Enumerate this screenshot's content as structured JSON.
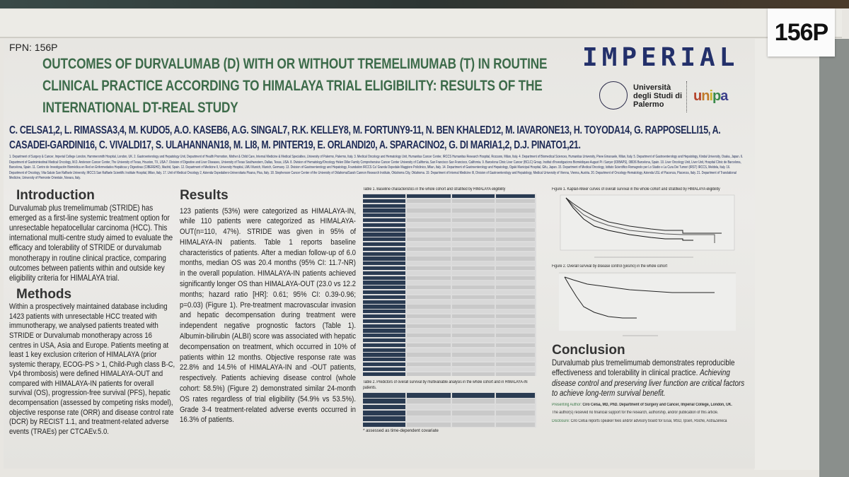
{
  "board_number": "156P",
  "fpn": "FPN: 156P",
  "title": "OUTCOMES OF DURVALUMAB (D) WITH OR WITHOUT TREMELIMUMAB (T) IN ROUTINE CLINICAL PRACTICE ACCORDING TO HIMALAYA TRIAL ELIGIBILITY: RESULTS OF THE INTERNATIONAL DT-REAL STUDY",
  "logos": {
    "imperial": "IMPERIAL",
    "palermo": "Università degli Studi di Palermo",
    "unipa": "unipa"
  },
  "authors": "C. CELSA1,2, L. RIMASSA3,4, M. KUDO5, A.O. KASEB6, A.G. SINGAL7, R.K. KELLEY8, M. FORTUNY9-11, N. BEN KHALED12, M. IAVARONE13, H. TOYODA14, G. RAPPOSELLI15, A. CASADEI-GARDINI16, C. VIVALDI17, S. ULAHANNAN18, M. LI8, M. PINTER19, E. ORLANDI20, A. SPARACINO2, G. DI MARIA1,2, D.J. PINATO1,21.",
  "affiliations": "1. Department of Surgery & Cancer, Imperial College London, Hammersmith Hospital, London, UK. 2. Gastroenterology and Hepatology Unit, Department of Health Promotion, Mother & Child Care, Internal Medicine & Medical Specialties, University of Palermo, Palermo, Italy. 3. Medical Oncology and Hematology Unit, Humanitas Cancer Center, IRCCS Humanitas Research Hospital, Rozzano, Milan, Italy. 4. Department of Biomedical Sciences, Humanitas University, Pieve Emanuele, Milan, Italy. 5. Department of Gastroenterology and Hepatology, Kindai University, Osaka, Japan. 6. Department of Gastrointestinal Medical Oncology, M.D. Anderson Cancer Center, The University of Texas, Houston, TX, USA 7. Division of Digestive and Liver Diseases, University of Texas Southwestern, Dallas, Texas, USA. 8. Division of Hematology/Oncology Helen Diller Family Comprehensive Cancer Center University of California, San Francisco San Francisco, California. 9. Barcelona Clinic Liver Cancer (BCLC) Group, Institut d'Investigacions Biomèdiques August Pi i Sunyer (IDIBAPS), 08036 Barcelona, Spain. 10. Liver Oncology Unit, Liver Unit, Hospital Clinic de Barcelona, Barcelona, Spain. 11. Centro de Investigación Biomédica en Red en Enfermedades Hepáticas y Digestivas (CIBEREHD), Madrid, Spain. 12. Department of Medicine II, University Hospital, LMU Munich, Munich, Germany. 13. Division of Gastroenterology and Hepatology, Foundation IRCCS Ca' Granda Ospedale Maggiore Policlinico, Milan, Italy. 14. Department of Gastroenterology and Hepatology, Ogaki Municipal Hospital, Gifu, Japan. 15. Department of Medical Oncology, Istituto Scientifico Romagnolo per Lo Studio e La Cura Dei Tumori (IRST) IRCCS, Meldola, Italy. 16. Department of Oncology, Vita-Salute San Raffaele University, IRCCS San Raffaele Scientific Institute Hospital, Milan, Italy. 17. Unit of Medical Oncology 2, Azienda Ospedaliero-Universitaria Pisana, Pisa, Italy. 18. Stephenson Cancer Center of the University of Oklahoma/Sarah Cannon Research Institute, Oklahoma City, Oklahoma. 19. Department of Internal Medicine III, Division of Gastroenterology and Hepatology, Medical University of Vienna, Vienna, Austria. 20. Department of Oncology-Hematology, Azienda USL of Piacenza, Piacenza, Italy. 21. Department of Translational Medicine, University of Piemonte Orientale, Novara, Italy.",
  "introduction": {
    "heading": "Introduction",
    "text": "Durvalumab plus tremelimumab (STRIDE) has emerged as a first-line systemic treatment option for unresectable hepatocellular carcinoma (HCC). This international multi-centre study aimed to evaluate the efficacy and tolerability of STRIDE or durvalumab monotherapy in routine clinical practice, comparing outcomes between patients within and outside key eligibility criteria for HIMALAYA trial."
  },
  "methods": {
    "heading": "Methods",
    "text": "Within a prospectively maintained database including 1423 patients with unresectable HCC treated with immunotherapy, we analysed patients treated with STRIDE or Durvalumab monotherapy across 16 centres in USA, Asia and Europe. Patients meeting at least 1 key exclusion criterion of HIMALAYA (prior systemic therapy, ECOG-PS > 1, Child-Pugh class B-C, Vp4 thrombosis) were defined HIMALAYA-OUT and compared with HIMALAYA-IN patients for overall survival (OS), progression-free survival (PFS), hepatic decompensation (assessed by competing risks model), objective response rate (ORR) and disease control rate (DCR) by RECIST 1.1, and treatment-related adverse events (TRAEs) per CTCAEv.5.0."
  },
  "results": {
    "heading": "Results",
    "text": "123 patients (53%) were categorized as HIMALAYA-IN, while 110 patients were categorized as HIMALAYA-OUT(n=110, 47%). STRIDE was given in 95% of HIMALAYA-IN patients. Table 1 reports baseline characteristics of patients. After a median follow-up of 6.0 months, median OS was 20.4 months (95% CI: 11.7-NR) in the overall population. HIMALAYA-IN patients achieved significantly longer OS than HIMALAYA-OUT (23.0 vs 12.2 months; hazard ratio [HR]: 0.61; 95% CI: 0.39-0.96; p=0.03) (Figure 1). Pre-treatment macrovascular invasion and hepatic decompensation during treatment were independent negative prognostic factors (Table 1). Albumin-bilirubin (ALBI) score was associated with hepatic decompensation on treatment, which occurred in 10% of patients within 12 months. Objective response rate was 22.8% and 14.5% of HIMALAYA-IN and -OUT patients, respectively. Patients achieving disease control (whole cohort: 58.5%) (Figure 2) demonstrated similar 24-month OS rates regardless of trial eligibility (54.9% vs 53.5%). Grade 3-4 treatment-related adverse events occurred in 16.3% of patients."
  },
  "table1": {
    "caption": "Table 1. Baseline characteristics in the whole cohort and stratified by HIMALAYA eligibility"
  },
  "table2": {
    "caption": "Table 2. Predictors of overall survival by multivariable analysis in the whole cohort and in HIMALAYA-IN patients.",
    "footnote": "* assessed as time-dependent covariate"
  },
  "figure1": {
    "caption": "Figure 1. Kaplan-Meier curves of overall survival in the whole cohort and stratified by HIMALAYA eligibility"
  },
  "figure2": {
    "caption": "Figure 2. Overall survival by disease control (yes/no) in the whole cohort"
  },
  "conclusion": {
    "heading": "Conclusion",
    "text_plain": "Durvalumab plus tremelimumab demonstrates reproducible effectiveness and tolerability in clinical practice. ",
    "text_italic": "Achieving disease control and preserving liver function are critical factors to achieve long-term survival benefit."
  },
  "presenting": {
    "label": "Presenting Author: ",
    "text": "Ciro Celsa, MD, PhD. Department of Surgery and Cancer, Imperial College, London, UK."
  },
  "funding": "The author(s) received no financial support for the research, authorship, and/or publication of this article.",
  "disclosure": {
    "label": "Disclosure: ",
    "text": "Ciro Celsa reports speaker fees and/or advisory board for Eisai, MSD, Ipsen, Roche, AstraZeneca"
  },
  "colors": {
    "title_green": "#3d6b4a",
    "navy": "#1d2a55",
    "table_header": "#2a3b52"
  }
}
